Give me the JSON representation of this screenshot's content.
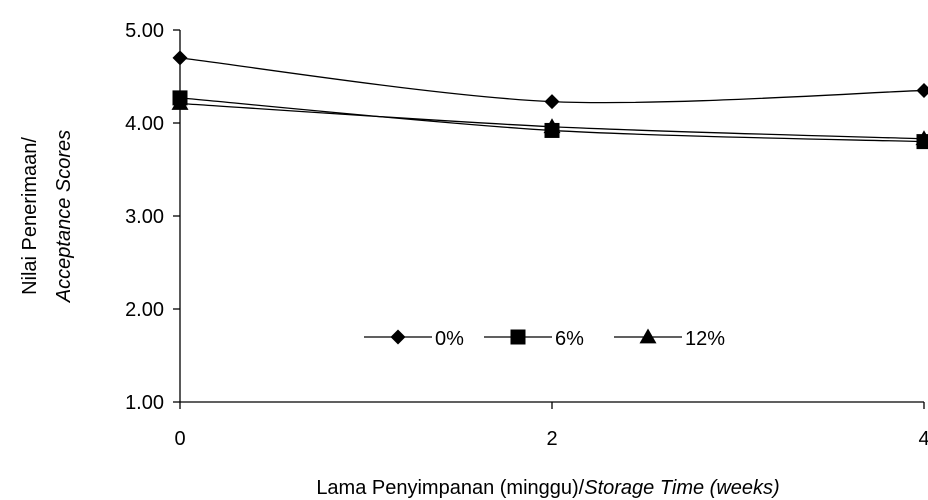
{
  "chart_data": {
    "type": "line",
    "x": [
      0,
      2,
      4
    ],
    "xticks": [
      "0",
      "2",
      "4"
    ],
    "yticks": [
      "1.00",
      "2.00",
      "3.00",
      "4.00",
      "5.00"
    ],
    "ylim": [
      1,
      5
    ],
    "xlim": [
      0,
      4
    ],
    "xlabel_main": "Lama Penyimpanan (minggu)/",
    "xlabel_italic": "Storage Time (weeks)",
    "ylabel_line1": "Nilai Penerimaan/",
    "ylabel_line2": "Acceptance Scores",
    "grid": false,
    "legend_position": "center",
    "series": [
      {
        "name": "0%",
        "marker": "diamond",
        "values": [
          4.7,
          4.23,
          4.35
        ]
      },
      {
        "name": "6%",
        "marker": "square",
        "values": [
          4.27,
          3.92,
          3.8
        ]
      },
      {
        "name": "12%",
        "marker": "triangle",
        "values": [
          4.21,
          3.96,
          3.83
        ]
      }
    ],
    "line_color": "#000000"
  }
}
